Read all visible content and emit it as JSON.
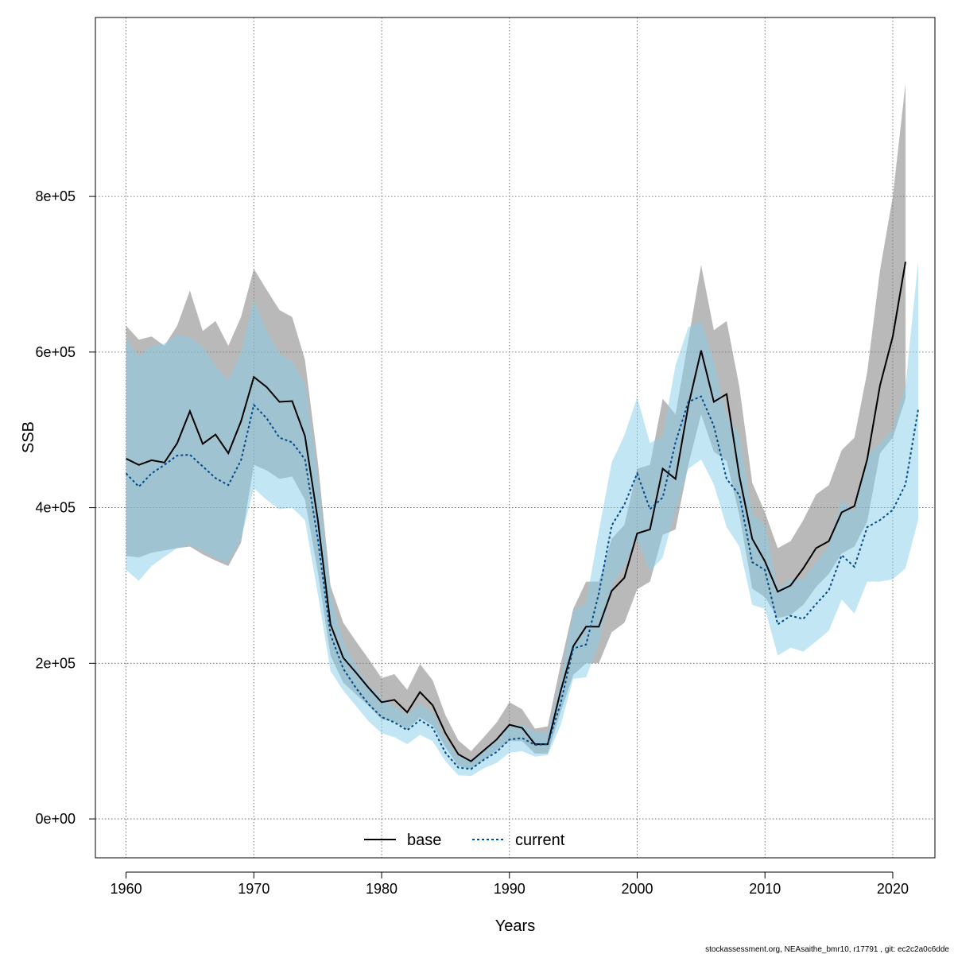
{
  "chart_data": {
    "type": "line",
    "xlabel": "Years",
    "ylabel": "SSB",
    "xlim": [
      1957.6,
      2023.3
    ],
    "ylim": [
      -50000,
      1030000
    ],
    "x_ticks": [
      1960,
      1970,
      1980,
      1990,
      2000,
      2010,
      2020
    ],
    "x_tick_labels": [
      "1960",
      "1970",
      "1980",
      "1990",
      "2000",
      "2010",
      "2020"
    ],
    "y_ticks": [
      0,
      200000,
      400000,
      600000,
      800000
    ],
    "y_tick_labels": [
      "0e+00",
      "2e+05",
      "4e+05",
      "6e+05",
      "8e+05"
    ],
    "grid": true,
    "legend_position": "bottom",
    "footer": "stockassessment.org, NEAsaithe_bmr10, r17791 , git: ec2c2a0c6dde",
    "series": [
      {
        "name": "base",
        "line_style": "solid",
        "color": "#000000",
        "band_color": "#7f7f7f",
        "years": [
          1960,
          1961,
          1962,
          1963,
          1964,
          1965,
          1966,
          1967,
          1968,
          1969,
          1970,
          1971,
          1972,
          1973,
          1974,
          1975,
          1976,
          1977,
          1978,
          1979,
          1980,
          1981,
          1982,
          1983,
          1984,
          1985,
          1986,
          1987,
          1988,
          1989,
          1990,
          1991,
          1992,
          1993,
          1994,
          1995,
          1996,
          1997,
          1998,
          1999,
          2000,
          2001,
          2002,
          2003,
          2004,
          2005,
          2006,
          2007,
          2008,
          2009,
          2010,
          2011,
          2012,
          2013,
          2014,
          2015,
          2016,
          2017,
          2018,
          2019,
          2020,
          2021
        ],
        "values": [
          463000,
          455000,
          461000,
          458000,
          483000,
          524000,
          482000,
          494000,
          470000,
          511000,
          568000,
          555000,
          536000,
          537000,
          492000,
          385000,
          250000,
          207000,
          188000,
          168000,
          150000,
          153000,
          137000,
          163000,
          146000,
          110000,
          83000,
          74000,
          88000,
          102000,
          121000,
          117000,
          96000,
          96000,
          164000,
          222000,
          247000,
          247000,
          293000,
          310000,
          367000,
          372000,
          450000,
          437000,
          531000,
          602000,
          536000,
          546000,
          440000,
          360000,
          331000,
          292000,
          300000,
          322000,
          348000,
          357000,
          394000,
          402000,
          462000,
          557000,
          620000,
          716000
        ],
        "lower": [
          338000,
          336000,
          342000,
          345000,
          348000,
          350000,
          340000,
          332000,
          325000,
          355000,
          455000,
          448000,
          437000,
          440000,
          410000,
          318000,
          210000,
          175000,
          160000,
          145000,
          128000,
          125000,
          115000,
          130000,
          120000,
          92000,
          68000,
          64000,
          76000,
          88000,
          100000,
          100000,
          84000,
          84000,
          137000,
          185000,
          200000,
          200000,
          240000,
          252000,
          295000,
          305000,
          365000,
          372000,
          455000,
          520000,
          472000,
          460000,
          390000,
          296000,
          285000,
          258000,
          262000,
          275000,
          298000,
          315000,
          341000,
          350000,
          382000,
          470000,
          490000,
          540000
        ],
        "upper": [
          634000,
          616000,
          620000,
          608000,
          634000,
          679000,
          627000,
          640000,
          608000,
          645000,
          707000,
          680000,
          654000,
          645000,
          590000,
          460000,
          300000,
          252000,
          228000,
          205000,
          181000,
          186000,
          166000,
          199000,
          178000,
          133000,
          101000,
          87000,
          105000,
          124000,
          150000,
          141000,
          116000,
          119000,
          198000,
          270000,
          305000,
          305000,
          360000,
          378000,
          450000,
          455000,
          540000,
          520000,
          615000,
          712000,
          628000,
          640000,
          555000,
          432000,
          394000,
          348000,
          357000,
          384000,
          417000,
          429000,
          474000,
          490000,
          574000,
          705000,
          800000,
          945000
        ]
      },
      {
        "name": "current",
        "line_style": "dotted",
        "color": "#00498b",
        "band_color": "#87ceeb",
        "years": [
          1960,
          1961,
          1962,
          1963,
          1964,
          1965,
          1966,
          1967,
          1968,
          1969,
          1970,
          1971,
          1972,
          1973,
          1974,
          1975,
          1976,
          1977,
          1978,
          1979,
          1980,
          1981,
          1982,
          1983,
          1984,
          1985,
          1986,
          1987,
          1988,
          1989,
          1990,
          1991,
          1992,
          1993,
          1994,
          1995,
          1996,
          1997,
          1998,
          1999,
          2000,
          2001,
          2002,
          2003,
          2004,
          2005,
          2006,
          2007,
          2008,
          2009,
          2010,
          2011,
          2012,
          2013,
          2014,
          2015,
          2016,
          2017,
          2018,
          2019,
          2020,
          2021,
          2022
        ],
        "values": [
          444000,
          427000,
          444000,
          455000,
          467000,
          468000,
          453000,
          438000,
          429000,
          461000,
          532000,
          515000,
          490000,
          484000,
          462000,
          360000,
          237000,
          193000,
          168000,
          147000,
          131000,
          124000,
          114000,
          127000,
          117000,
          85000,
          66000,
          64000,
          76000,
          86000,
          102000,
          104000,
          95000,
          96000,
          148000,
          219000,
          224000,
          290000,
          377000,
          404000,
          444000,
          398000,
          413000,
          484000,
          536000,
          543000,
          505000,
          437000,
          416000,
          330000,
          320000,
          250000,
          261000,
          257000,
          276000,
          294000,
          339000,
          324000,
          375000,
          384000,
          397000,
          430000,
          527000
        ],
        "lower": [
          320000,
          306000,
          325000,
          337000,
          348000,
          352000,
          345000,
          335000,
          330000,
          360000,
          425000,
          410000,
          398000,
          400000,
          384000,
          290000,
          190000,
          165000,
          145000,
          125000,
          110000,
          105000,
          96000,
          108000,
          100000,
          74000,
          56000,
          55000,
          65000,
          72000,
          85000,
          87000,
          80000,
          82000,
          120000,
          180000,
          182000,
          225000,
          300000,
          325000,
          360000,
          318000,
          336000,
          398000,
          450000,
          462000,
          430000,
          375000,
          350000,
          275000,
          270000,
          210000,
          220000,
          215000,
          228000,
          242000,
          282000,
          264000,
          305000,
          305000,
          308000,
          322000,
          385000
        ],
        "upper": [
          618000,
          594000,
          608000,
          611000,
          622000,
          619000,
          607000,
          582000,
          564000,
          600000,
          667000,
          627000,
          598000,
          588000,
          560000,
          442000,
          290000,
          228000,
          196000,
          172000,
          156000,
          145000,
          134000,
          148000,
          137000,
          102000,
          80000,
          76000,
          89000,
          102000,
          121000,
          122000,
          112000,
          111000,
          178000,
          268000,
          278000,
          370000,
          458000,
          493000,
          542000,
          483000,
          492000,
          583000,
          632000,
          640000,
          588000,
          518000,
          494000,
          392000,
          378000,
          295000,
          308000,
          308000,
          330000,
          350000,
          410000,
          394000,
          468000,
          482000,
          500000,
          558000,
          718000
        ]
      }
    ]
  }
}
